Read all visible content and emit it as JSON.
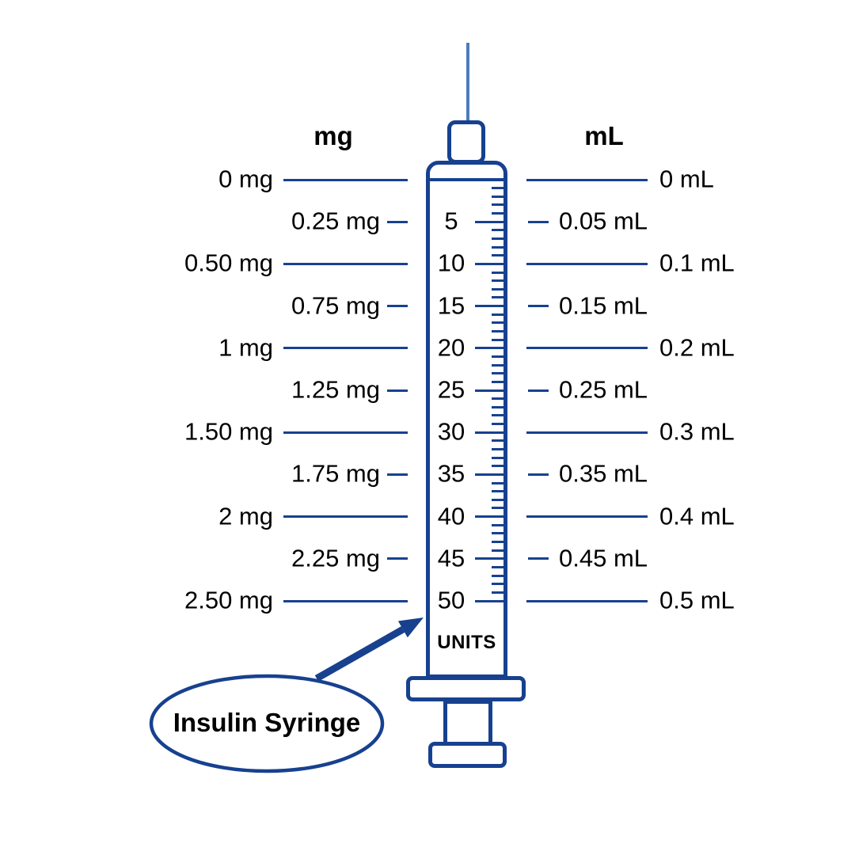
{
  "headers": {
    "mg": "mg",
    "ml": "mL"
  },
  "rows": [
    {
      "mg": "0 mg",
      "units": "",
      "ml": "0 mL",
      "long": true
    },
    {
      "mg": "0.25 mg",
      "units": "5",
      "ml": "0.05 mL",
      "long": false
    },
    {
      "mg": "0.50 mg",
      "units": "10",
      "ml": "0.1 mL",
      "long": true
    },
    {
      "mg": "0.75 mg",
      "units": "15",
      "ml": "0.15 mL",
      "long": false
    },
    {
      "mg": "1 mg",
      "units": "20",
      "ml": "0.2 mL",
      "long": true
    },
    {
      "mg": "1.25 mg",
      "units": "25",
      "ml": "0.25 mL",
      "long": false
    },
    {
      "mg": "1.50 mg",
      "units": "30",
      "ml": "0.3 mL",
      "long": true
    },
    {
      "mg": "1.75 mg",
      "units": "35",
      "ml": "0.35 mL",
      "long": false
    },
    {
      "mg": "2 mg",
      "units": "40",
      "ml": "0.4 mL",
      "long": true
    },
    {
      "mg": "2.25 mg",
      "units": "45",
      "ml": "0.45 mL",
      "long": false
    },
    {
      "mg": "2.50 mg",
      "units": "50",
      "ml": "0.5 mL",
      "long": true
    }
  ],
  "syringe": {
    "units_label": "UNITS",
    "max_units": 50,
    "units_per_label": 5
  },
  "callout": {
    "label": "Insulin Syringe"
  },
  "colors": {
    "navy": "#17418f",
    "needle": "#4d7cbe",
    "text": "#000000",
    "background": "#ffffff"
  }
}
